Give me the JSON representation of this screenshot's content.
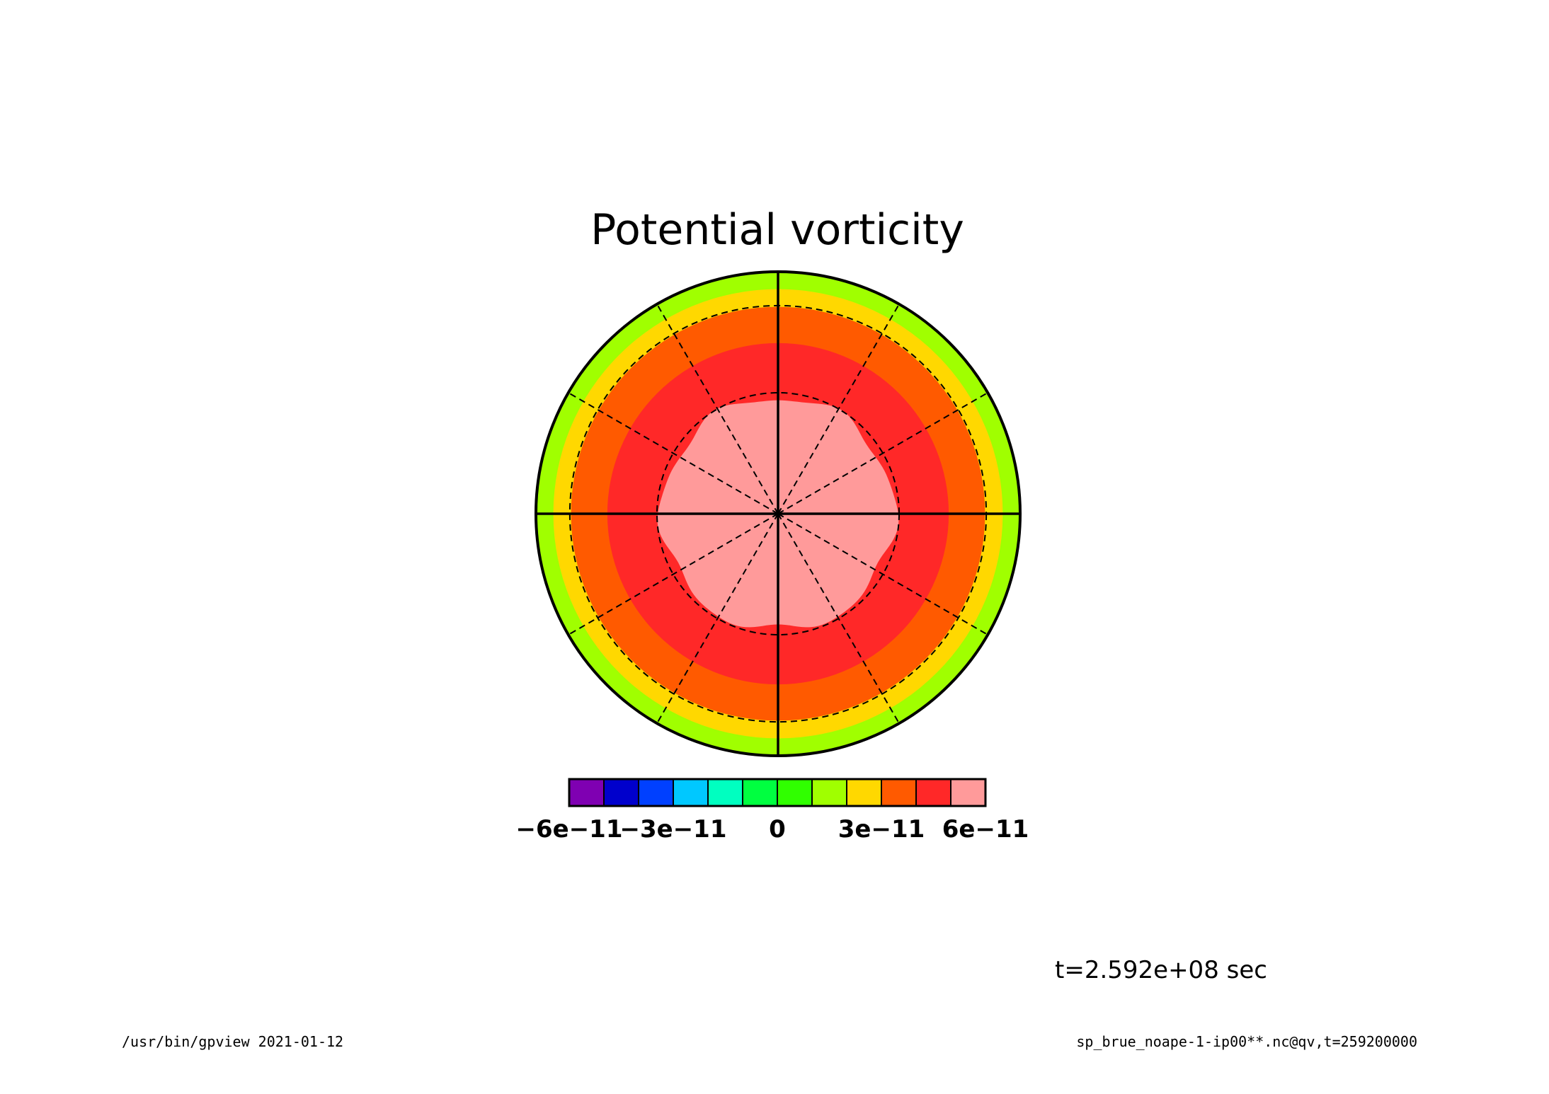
{
  "chart_data": {
    "type": "heatmap",
    "projection": "polar-stereographic",
    "title": "Potential vorticity",
    "colorbar": {
      "levels": [
        -6e-11,
        -5e-11,
        -4e-11,
        -3e-11,
        -2e-11,
        -1e-11,
        0,
        1e-11,
        2e-11,
        3e-11,
        4e-11,
        5e-11,
        6e-11
      ],
      "colors": [
        "#7f00b2",
        "#0000cc",
        "#0040ff",
        "#00c8ff",
        "#00ffc0",
        "#00ff40",
        "#30ff00",
        "#a0ff00",
        "#ffd800",
        "#ff5a00",
        "#ff2828",
        "#ff9a9a"
      ],
      "tick_labels": [
        "−6e−11",
        "−3e−11",
        "0",
        "3e−11",
        "6e−11"
      ],
      "tick_values": [
        -6e-11,
        -3e-11,
        0,
        3e-11,
        6e-11
      ]
    },
    "radial_bands": [
      {
        "r_from": 0.0,
        "r_to": 0.48,
        "color_index": 11,
        "wavy": true
      },
      {
        "r_from": 0.48,
        "r_to": 0.705,
        "color_index": 10
      },
      {
        "r_from": 0.705,
        "r_to": 0.855,
        "color_index": 9
      },
      {
        "r_from": 0.855,
        "r_to": 0.928,
        "color_index": 8
      },
      {
        "r_from": 0.928,
        "r_to": 1.0,
        "color_index": 7
      }
    ],
    "graticule": {
      "solid_meridians_deg": [
        0,
        90,
        180,
        270
      ],
      "dashed_meridians_deg": [
        30,
        60,
        120,
        150,
        210,
        240,
        300,
        330
      ],
      "dashed_circles_r": [
        0.5,
        0.86
      ]
    },
    "annotations": {
      "time_label": "t=2.592e+08 sec",
      "footer_left": "/usr/bin/gpview   2021-01-12",
      "footer_right": "sp_brue_noape-1-ip00**.nc@qv,t=259200000"
    }
  }
}
